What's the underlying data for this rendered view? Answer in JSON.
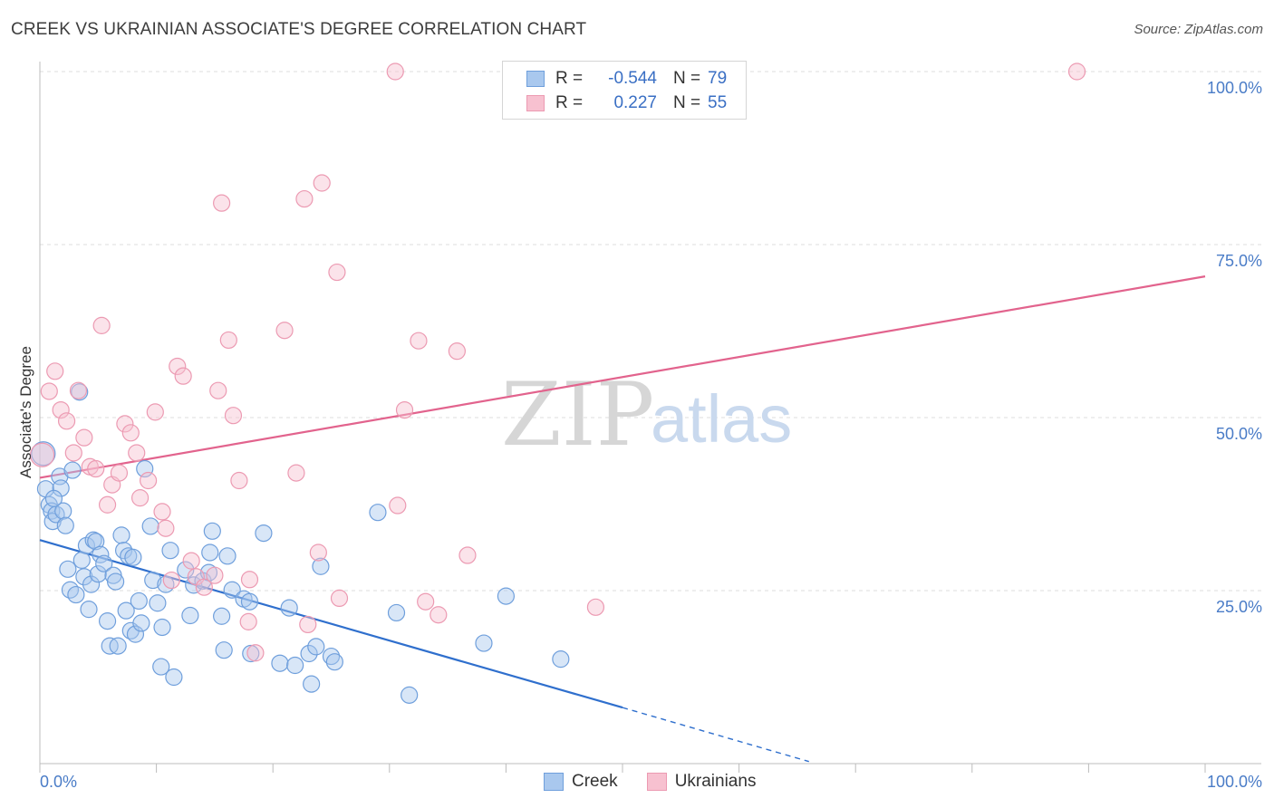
{
  "title": "CREEK VS UKRAINIAN ASSOCIATE'S DEGREE CORRELATION CHART",
  "source": "Source: ZipAtlas.com",
  "watermark": {
    "zip": "ZIP",
    "atlas": "atlas"
  },
  "legend": {
    "r_label": "R =",
    "n_label": "N =",
    "series": [
      {
        "name": "Creek",
        "r": "-0.544",
        "n": "79",
        "fill": "#a9c8ee",
        "stroke": "#6f9fdc"
      },
      {
        "name": "Ukrainians",
        "r": "0.227",
        "n": "55",
        "fill": "#f7c1d0",
        "stroke": "#ec9ab2"
      }
    ]
  },
  "chart_data": {
    "type": "scatter",
    "title": "CREEK VS UKRAINIAN ASSOCIATE'S DEGREE CORRELATION CHART",
    "xlabel": "",
    "ylabel": "Associate's Degree",
    "xlim": [
      0,
      100
    ],
    "ylim": [
      0,
      100
    ],
    "x_tick_labels": [
      "0.0%",
      "100.0%"
    ],
    "y_ticks": [
      {
        "value": 25,
        "label": "25.0%"
      },
      {
        "value": 50,
        "label": "50.0%"
      },
      {
        "value": 75,
        "label": "75.0%"
      },
      {
        "value": 100,
        "label": "100.0%"
      }
    ],
    "series": [
      {
        "name": "Creek",
        "color": "#6f9fdc",
        "line_color": "#2f6fcd",
        "trend": {
          "x0": 0,
          "y0": 32.3,
          "x1": 50,
          "y1": 8.1,
          "dash_x1": 66,
          "dash_y1": 0.3
        },
        "points": [
          [
            0.3,
            44.8
          ],
          [
            0.5,
            39.7
          ],
          [
            0.8,
            37.4
          ],
          [
            1.0,
            36.5
          ],
          [
            1.1,
            35.0
          ],
          [
            1.4,
            36.0
          ],
          [
            1.7,
            41.5
          ],
          [
            1.8,
            39.8
          ],
          [
            2.0,
            36.5
          ],
          [
            2.2,
            34.4
          ],
          [
            2.4,
            28.1
          ],
          [
            2.6,
            25.1
          ],
          [
            2.8,
            42.4
          ],
          [
            3.1,
            24.4
          ],
          [
            3.4,
            53.7
          ],
          [
            3.6,
            29.4
          ],
          [
            3.8,
            27.0
          ],
          [
            4.0,
            31.5
          ],
          [
            4.2,
            22.3
          ],
          [
            4.4,
            25.9
          ],
          [
            4.6,
            32.3
          ],
          [
            4.8,
            32.1
          ],
          [
            5.0,
            27.4
          ],
          [
            5.2,
            30.2
          ],
          [
            5.5,
            28.9
          ],
          [
            5.8,
            20.6
          ],
          [
            6.0,
            17.0
          ],
          [
            6.3,
            27.2
          ],
          [
            6.5,
            26.3
          ],
          [
            6.7,
            17.0
          ],
          [
            7.0,
            33.0
          ],
          [
            7.2,
            30.8
          ],
          [
            7.4,
            22.1
          ],
          [
            7.6,
            30.0
          ],
          [
            7.8,
            19.2
          ],
          [
            8.0,
            29.8
          ],
          [
            8.2,
            18.7
          ],
          [
            8.5,
            23.5
          ],
          [
            8.7,
            20.3
          ],
          [
            9.0,
            42.6
          ],
          [
            9.5,
            34.3
          ],
          [
            9.7,
            26.5
          ],
          [
            10.1,
            23.2
          ],
          [
            10.4,
            14.0
          ],
          [
            10.5,
            19.7
          ],
          [
            10.8,
            25.9
          ],
          [
            11.2,
            30.8
          ],
          [
            11.5,
            12.5
          ],
          [
            12.5,
            28.0
          ],
          [
            12.9,
            21.4
          ],
          [
            13.2,
            25.8
          ],
          [
            14.0,
            26.4
          ],
          [
            14.5,
            27.6
          ],
          [
            14.6,
            30.5
          ],
          [
            14.8,
            33.6
          ],
          [
            15.6,
            21.3
          ],
          [
            15.8,
            16.4
          ],
          [
            16.1,
            30.0
          ],
          [
            16.5,
            25.1
          ],
          [
            17.5,
            23.8
          ],
          [
            18.0,
            23.4
          ],
          [
            18.1,
            15.9
          ],
          [
            19.2,
            33.3
          ],
          [
            20.6,
            14.5
          ],
          [
            21.4,
            22.5
          ],
          [
            21.9,
            14.2
          ],
          [
            23.1,
            15.9
          ],
          [
            23.3,
            11.5
          ],
          [
            23.7,
            16.9
          ],
          [
            24.1,
            28.5
          ],
          [
            25.0,
            15.5
          ],
          [
            25.3,
            14.7
          ],
          [
            29.0,
            36.3
          ],
          [
            30.6,
            21.8
          ],
          [
            31.7,
            9.9
          ],
          [
            38.1,
            17.4
          ],
          [
            40.0,
            24.2
          ],
          [
            44.7,
            15.1
          ],
          [
            1.2,
            38.3
          ]
        ]
      },
      {
        "name": "Ukrainians",
        "color": "#ec9ab2",
        "line_color": "#e2638d",
        "trend": {
          "x0": 0,
          "y0": 41.3,
          "x1": 100,
          "y1": 70.4
        },
        "points": [
          [
            0.2,
            44.6
          ],
          [
            0.8,
            53.8
          ],
          [
            1.3,
            56.7
          ],
          [
            1.8,
            51.1
          ],
          [
            2.3,
            49.5
          ],
          [
            2.9,
            44.9
          ],
          [
            3.3,
            53.9
          ],
          [
            3.8,
            47.1
          ],
          [
            4.3,
            42.9
          ],
          [
            4.8,
            42.6
          ],
          [
            5.3,
            63.3
          ],
          [
            5.8,
            37.4
          ],
          [
            6.2,
            40.3
          ],
          [
            6.8,
            42.0
          ],
          [
            7.3,
            49.1
          ],
          [
            7.8,
            47.8
          ],
          [
            8.3,
            44.9
          ],
          [
            8.6,
            38.4
          ],
          [
            9.3,
            40.9
          ],
          [
            9.9,
            50.8
          ],
          [
            10.5,
            36.4
          ],
          [
            10.8,
            34.0
          ],
          [
            11.3,
            26.5
          ],
          [
            11.8,
            57.4
          ],
          [
            12.3,
            56.0
          ],
          [
            13.0,
            29.3
          ],
          [
            13.4,
            27.0
          ],
          [
            14.1,
            25.5
          ],
          [
            15.0,
            27.2
          ],
          [
            15.3,
            53.9
          ],
          [
            15.6,
            81.0
          ],
          [
            16.2,
            61.2
          ],
          [
            16.6,
            50.3
          ],
          [
            17.1,
            40.9
          ],
          [
            18.0,
            26.6
          ],
          [
            17.9,
            20.5
          ],
          [
            21.0,
            62.6
          ],
          [
            22.0,
            42.0
          ],
          [
            22.7,
            81.6
          ],
          [
            23.0,
            20.1
          ],
          [
            23.9,
            30.5
          ],
          [
            24.2,
            83.9
          ],
          [
            25.5,
            71.0
          ],
          [
            25.7,
            23.9
          ],
          [
            30.5,
            100.0
          ],
          [
            30.7,
            37.3
          ],
          [
            31.3,
            51.1
          ],
          [
            32.5,
            61.1
          ],
          [
            33.1,
            23.4
          ],
          [
            34.2,
            21.5
          ],
          [
            35.8,
            59.6
          ],
          [
            36.7,
            30.1
          ],
          [
            47.7,
            22.6
          ],
          [
            89.0,
            100.0
          ],
          [
            18.5,
            16.0
          ]
        ]
      }
    ]
  }
}
